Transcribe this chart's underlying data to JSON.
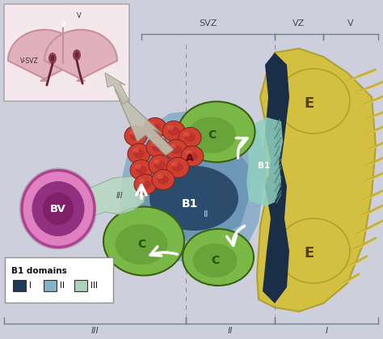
{
  "bg_color": "#cdd0dc",
  "inset_bg": "#f5e8ec",
  "inset_frame": "#aaaaaa",
  "inset_brain_outer": "#c8909a",
  "inset_brain_fill": "#e0b0bc",
  "inset_ventricle": "#8a4055",
  "svz_label": "SVZ",
  "vz_label": "VZ",
  "v_label": "V",
  "zone_labels_bottom": [
    "III",
    "II",
    "I"
  ],
  "legend_title": "B1 domains",
  "legend_items": [
    "I",
    "II",
    "III"
  ],
  "legend_colors": [
    "#1e3a5a",
    "#82b4c8",
    "#aad4b8"
  ],
  "b1_body_light": "#8aacc8",
  "b1_body_mid": "#6090b0",
  "b1_body_dark": "#1e3a5a",
  "b1_nucleus_color": "#506888",
  "c_cell_color": "#7ab848",
  "c_cell_dark": "#4a8020",
  "c_cell_edge": "#3a6010",
  "a_cell_color": "#d04030",
  "a_cell_dark": "#a02828",
  "a_cell_highlight": "#e86050",
  "bv_outer_color": "#d060a8",
  "bv_inner_color": "#903080",
  "bv_neck_color": "#b0d8c0",
  "e_cell_color": "#d4c040",
  "e_cell_dark": "#b0a030",
  "e_cell_shade": "#c8b838",
  "dark_wall_color": "#1a2e48",
  "dark_wall_mid": "#203858",
  "b1_apical_color": "#90d0c0",
  "b1_apical_dark": "#60a890",
  "cilia_color": "#c8b030",
  "cilia_bg": "#e8d870",
  "arrow_white": "#ffffff",
  "bracket_color": "#708090",
  "dashed_color": "#909090",
  "inset_arrow_color": "#c0c0b0"
}
